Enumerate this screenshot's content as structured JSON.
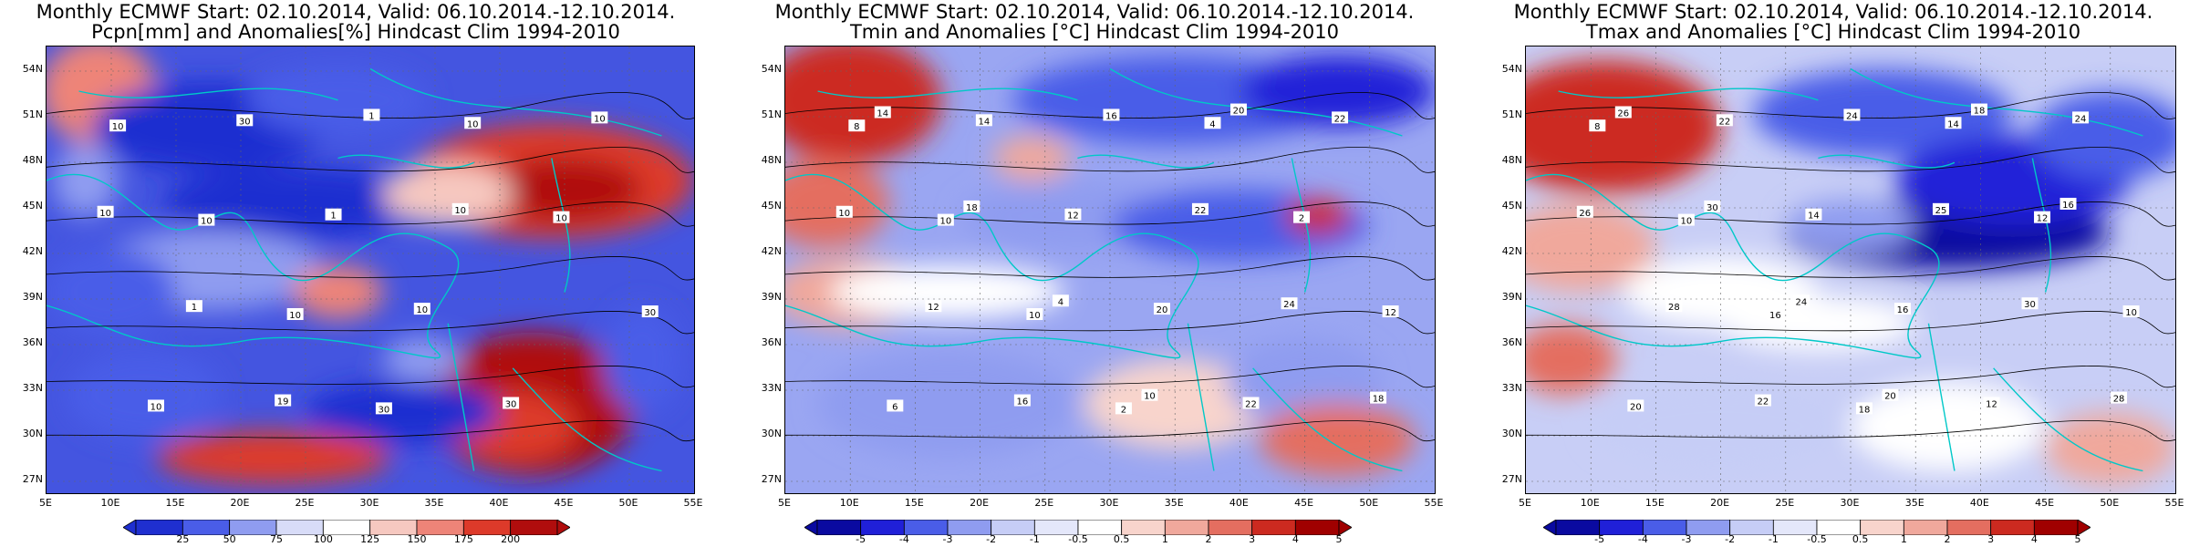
{
  "panels": [
    {
      "title_line1": "Monthly ECMWF Start: 02.10.2014, Valid: 06.10.2014.-12.10.2014.",
      "title_line2": "Pcpn[mm] and Anomalies[%] Hindcast Clim 1994-2010",
      "colorbar_labels": [
        "25",
        "50",
        "75",
        "100",
        "125",
        "150",
        "175",
        "200"
      ],
      "contour_labels": [
        "10",
        "10",
        "10",
        "30",
        "10",
        "10",
        "30",
        "10",
        "30",
        "1",
        "10",
        "30",
        "10",
        "10",
        "1",
        "19",
        "1",
        "10"
      ]
    },
    {
      "title_line1": "Monthly ECMWF Start: 02.10.2014, Valid: 06.10.2014.-12.10.2014.",
      "title_line2": "Tmin and Anomalies [°C] Hindcast Clim 1994-2010",
      "colorbar_labels": [
        "-5",
        "-4",
        "-3",
        "-2",
        "-1",
        "-0.5",
        "0.5",
        "1",
        "2",
        "3",
        "4",
        "5"
      ],
      "contour_labels": [
        "8",
        "10",
        "10",
        "2",
        "4",
        "2",
        "12",
        "6",
        "14",
        "12",
        "20",
        "22",
        "22",
        "10",
        "12",
        "16",
        "16",
        "22",
        "24",
        "18",
        "14",
        "18",
        "4",
        "10",
        "20"
      ]
    },
    {
      "title_line1": "Monthly ECMWF Start: 02.10.2014, Valid: 06.10.2014.-12.10.2014.",
      "title_line2": "Tmax and Anomalies [°C] Hindcast Clim 1994-2010",
      "colorbar_labels": [
        "-5",
        "-4",
        "-3",
        "-2",
        "-1",
        "-0.5",
        "0.5",
        "1",
        "2",
        "3",
        "4",
        "5"
      ],
      "contour_labels": [
        "8",
        "10",
        "16",
        "18",
        "14",
        "12",
        "10",
        "20",
        "22",
        "14",
        "16",
        "12",
        "24",
        "26",
        "28",
        "22",
        "24",
        "25",
        "30",
        "28",
        "26",
        "30",
        "24",
        "20",
        "18",
        "16"
      ]
    }
  ],
  "map_axes": {
    "lat_labels": [
      "54N",
      "51N",
      "48N",
      "45N",
      "42N",
      "39N",
      "36N",
      "33N",
      "30N",
      "27N"
    ],
    "lon_labels": [
      "5E",
      "10E",
      "15E",
      "20E",
      "25E",
      "30E",
      "35E",
      "40E",
      "45E",
      "50E",
      "55E"
    ]
  },
  "colors": {
    "precip_scale": [
      "#1f2fd0",
      "#4a5de8",
      "#8f9cf0",
      "#d8dcf8",
      "#ffffff",
      "#f6c8c0",
      "#ee8478",
      "#dd3a2a",
      "#b00d0d"
    ],
    "temp_scale": [
      "#0a0aa0",
      "#2020d8",
      "#4a5de8",
      "#8f9cf0",
      "#c6cdf6",
      "#e4e7fa",
      "#ffffff",
      "#f8d4cc",
      "#f0a89c",
      "#e46e60",
      "#cc2a20",
      "#a00000"
    ],
    "coastline": "#00c8c8",
    "contour": "#000000"
  }
}
